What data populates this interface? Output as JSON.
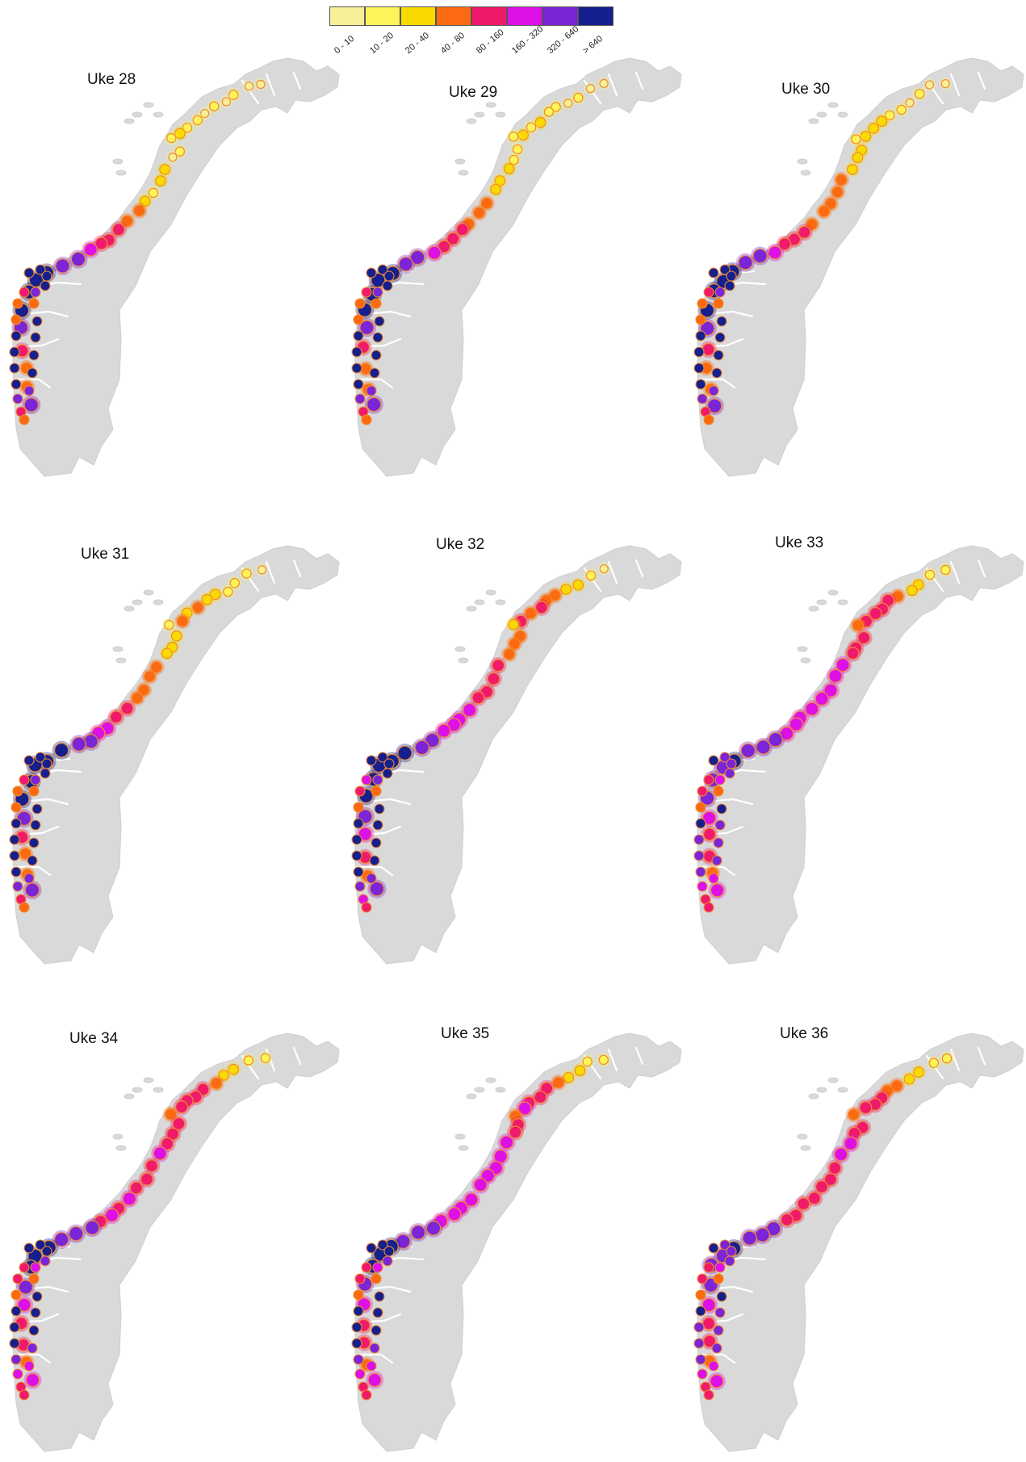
{
  "legend": {
    "bins": [
      {
        "label": "0 - 10",
        "color": "#f6f098"
      },
      {
        "label": "10 - 20",
        "color": "#fdf45a"
      },
      {
        "label": "20 - 40",
        "color": "#f9da00"
      },
      {
        "label": "40 - 80",
        "color": "#fb6a10"
      },
      {
        "label": "80 - 160",
        "color": "#ef1a6c"
      },
      {
        "label": "160 - 320",
        "color": "#dd10e8"
      },
      {
        "label": "320 - 640",
        "color": "#7a25d8"
      },
      {
        "label": "> 640",
        "color": "#15208e"
      }
    ]
  },
  "maps": [
    {
      "title": "Uke 28",
      "counts": [
        0,
        0,
        1,
        0,
        1,
        0,
        1,
        1,
        2,
        1,
        1,
        0,
        2,
        2,
        1,
        2,
        3,
        3,
        4,
        4,
        4,
        5,
        6,
        6,
        7,
        7,
        7,
        7,
        6,
        4,
        3,
        3,
        6
      ]
    },
    {
      "title": "Uke 29",
      "counts": [
        0,
        0,
        1,
        0,
        1,
        1,
        2,
        1,
        2,
        1,
        1,
        1,
        2,
        2,
        2,
        3,
        3,
        3,
        4,
        4,
        4,
        5,
        6,
        6,
        7,
        7,
        7,
        7,
        6,
        4,
        3,
        3,
        6
      ]
    },
    {
      "title": "Uke 30",
      "counts": [
        0,
        0,
        1,
        0,
        1,
        1,
        2,
        2,
        2,
        1,
        2,
        2,
        2,
        3,
        3,
        3,
        3,
        3,
        4,
        4,
        4,
        5,
        6,
        6,
        7,
        7,
        7,
        7,
        6,
        4,
        3,
        3,
        6
      ]
    },
    {
      "title": "Uke 31",
      "counts": [
        0,
        1,
        1,
        1,
        2,
        2,
        3,
        2,
        3,
        1,
        2,
        2,
        2,
        3,
        3,
        3,
        3,
        4,
        4,
        5,
        5,
        6,
        6,
        7,
        7,
        7,
        7,
        7,
        6,
        4,
        3,
        3,
        6
      ]
    },
    {
      "title": "Uke 32",
      "counts": [
        0,
        1,
        2,
        2,
        3,
        3,
        4,
        3,
        4,
        2,
        3,
        3,
        3,
        4,
        4,
        4,
        4,
        5,
        5,
        5,
        5,
        6,
        6,
        7,
        7,
        7,
        7,
        7,
        6,
        5,
        4,
        3,
        6
      ]
    },
    {
      "title": "Uke 33",
      "counts": [
        1,
        1,
        2,
        2,
        3,
        4,
        4,
        4,
        4,
        3,
        4,
        4,
        4,
        5,
        5,
        5,
        5,
        5,
        5,
        5,
        5,
        6,
        6,
        6,
        7,
        6,
        6,
        6,
        5,
        4,
        4,
        3,
        5
      ]
    },
    {
      "title": "Uke 34",
      "counts": [
        1,
        1,
        2,
        2,
        3,
        4,
        4,
        4,
        4,
        3,
        4,
        4,
        4,
        5,
        4,
        4,
        4,
        5,
        4,
        5,
        4,
        6,
        6,
        6,
        7,
        7,
        7,
        6,
        5,
        4,
        4,
        3,
        5
      ]
    },
    {
      "title": "Uke 35",
      "counts": [
        1,
        1,
        2,
        2,
        3,
        4,
        4,
        4,
        5,
        3,
        4,
        4,
        5,
        5,
        5,
        5,
        5,
        5,
        5,
        5,
        5,
        6,
        6,
        6,
        7,
        7,
        7,
        6,
        5,
        4,
        4,
        3,
        5
      ]
    },
    {
      "title": "Uke 36",
      "counts": [
        1,
        1,
        2,
        2,
        3,
        3,
        4,
        4,
        4,
        3,
        4,
        4,
        5,
        5,
        4,
        4,
        4,
        4,
        4,
        4,
        4,
        6,
        6,
        6,
        7,
        6,
        6,
        6,
        5,
        4,
        4,
        3,
        5
      ]
    }
  ]
}
